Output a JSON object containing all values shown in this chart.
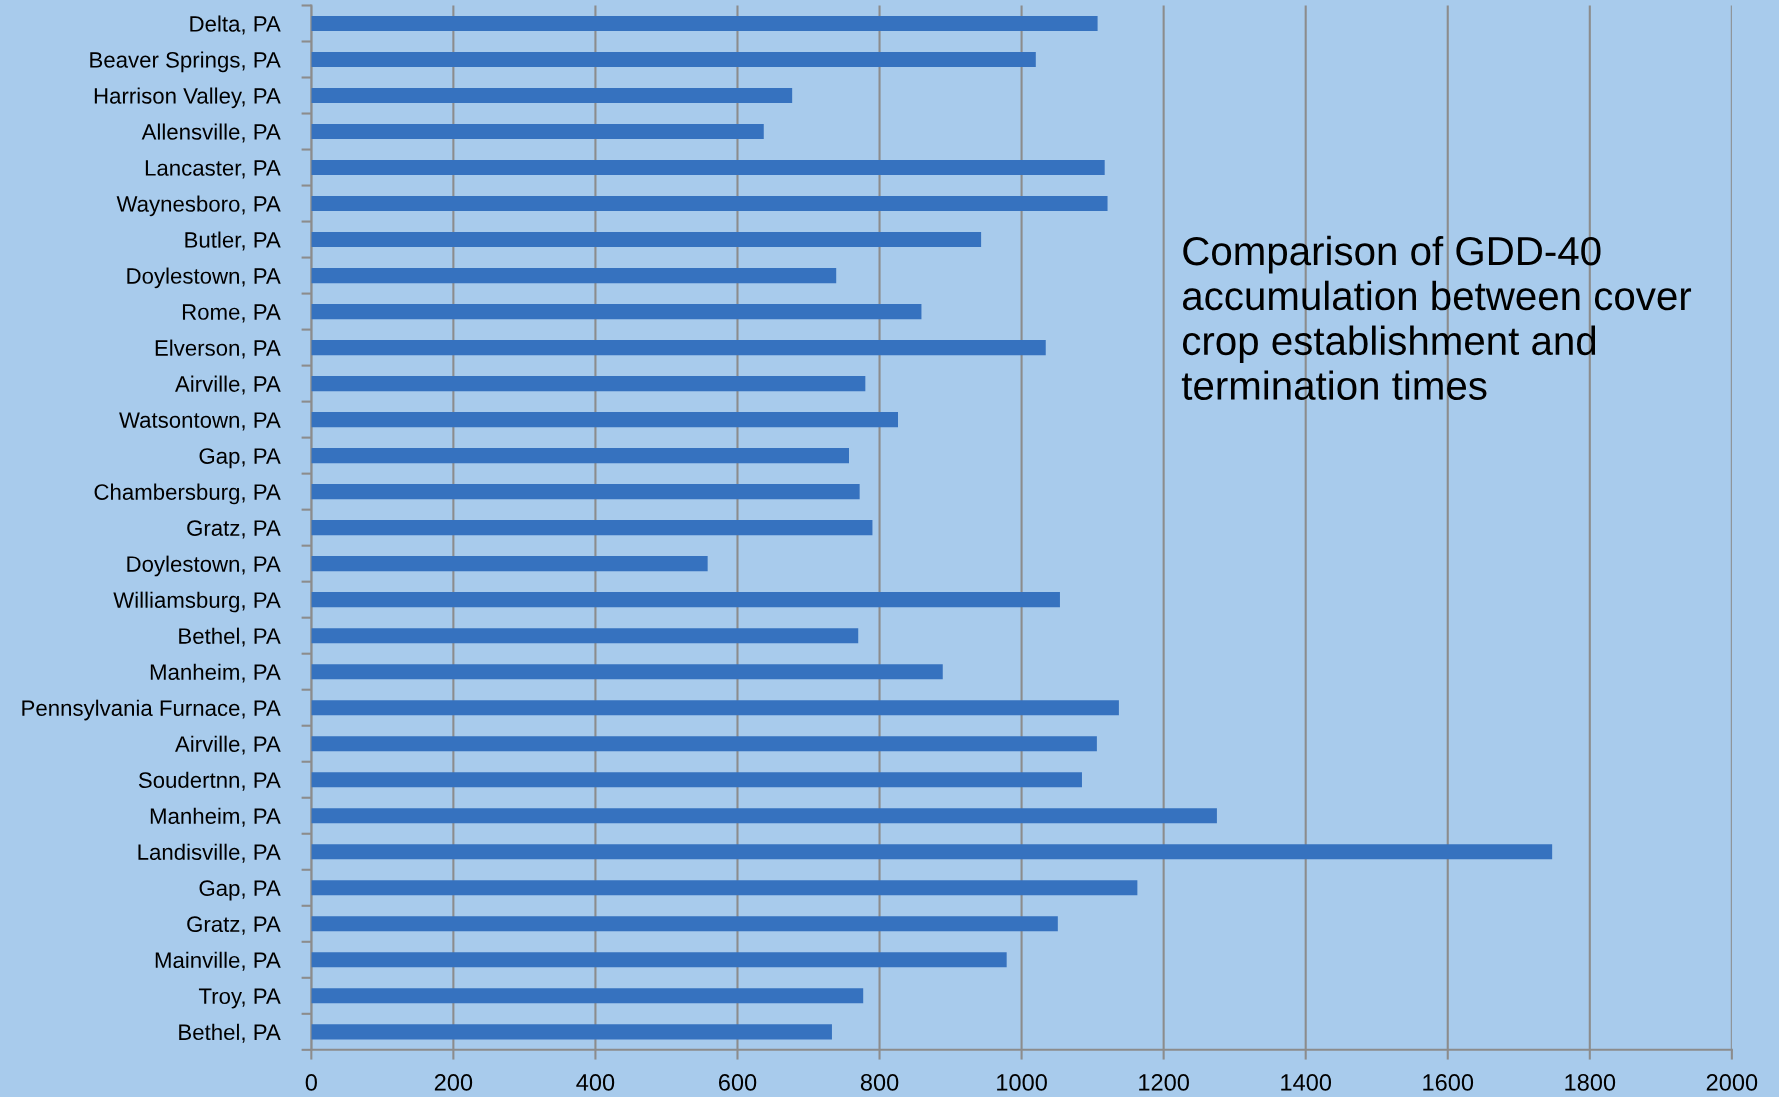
{
  "chart_data": {
    "type": "bar",
    "orientation": "horizontal",
    "title": "Comparison of GDD-40 accumulation between cover crop establishment and termination times",
    "categories": [
      "Delta, PA",
      "Beaver Springs, PA",
      "Harrison Valley, PA",
      "Allensville, PA",
      "Lancaster, PA",
      "Waynesboro, PA",
      "Butler, PA",
      "Doylestown, PA",
      "Rome, PA",
      "Elverson, PA",
      "Airville, PA",
      "Watsontown, PA",
      "Gap, PA",
      "Chambersburg, PA",
      "Gratz, PA",
      "Doylestown, PA",
      "Williamsburg, PA",
      "Bethel, PA",
      "Manheim, PA",
      "Pennsylvania Furnace, PA",
      "Airville, PA",
      "Soudertnn, PA",
      "Manheim, PA",
      "Landisville, PA",
      "Gap, PA",
      "Gratz, PA",
      "Mainville, PA",
      "Troy, PA",
      "Bethel, PA"
    ],
    "values": [
      1107,
      1020,
      677,
      637,
      1117,
      1121,
      943,
      739,
      859,
      1034,
      780,
      826,
      757,
      772,
      790,
      558,
      1054,
      770,
      889,
      1137,
      1106,
      1085,
      1275,
      1747,
      1163,
      1051,
      979,
      777,
      733
    ],
    "color": "#3672bf",
    "xlim": [
      0,
      2000
    ],
    "xticks": [
      0,
      200,
      400,
      600,
      800,
      1000,
      1200,
      1400,
      1600,
      1800,
      2000
    ],
    "grid": "x"
  }
}
